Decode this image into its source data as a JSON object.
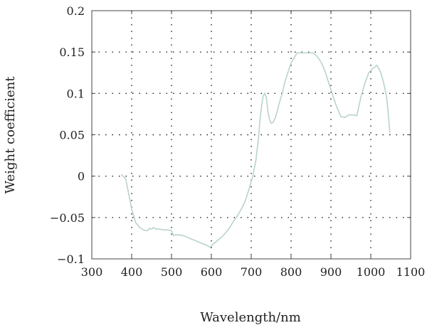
{
  "chart_data": {
    "type": "line",
    "xlabel": "Wavelength/nm",
    "ylabel": "Weight coefficient",
    "xlim": [
      300,
      1100
    ],
    "ylim": [
      -0.1,
      0.2
    ],
    "xticks": [
      300,
      400,
      500,
      600,
      700,
      800,
      900,
      1000,
      1100
    ],
    "xtick_labels": [
      "300",
      "400",
      "500",
      "600",
      "700",
      "800",
      "900",
      "1000",
      "1100"
    ],
    "yticks": [
      -0.1,
      -0.05,
      0,
      0.05,
      0.1,
      0.15,
      0.2
    ],
    "ytick_labels": [
      "−0.1",
      "−0.05",
      "0",
      "0.05",
      "0.1",
      "0.15",
      "0.2"
    ],
    "grid": true,
    "series_color": "#b9d3cd",
    "series": [
      {
        "x": [
          374,
          385,
          392,
          400,
          410,
          420,
          430,
          440,
          445,
          450,
          455,
          460,
          470,
          480,
          490,
          500,
          505,
          510,
          515,
          520,
          530,
          540,
          550,
          560,
          570,
          580,
          590,
          597,
          605,
          615,
          625,
          635,
          645,
          655,
          665,
          675,
          685,
          695,
          705,
          712,
          718,
          722,
          726,
          730,
          734,
          738,
          742,
          746,
          750,
          755,
          760,
          765,
          770,
          778,
          785,
          792,
          800,
          808,
          815,
          825,
          835,
          845,
          855,
          865,
          875,
          885,
          895,
          905,
          915,
          925,
          935,
          945,
          955,
          965,
          975,
          985,
          995,
          1005,
          1015,
          1020,
          1025,
          1030,
          1035,
          1040,
          1044,
          1048
        ],
        "y": [
          0.002,
          -0.003,
          -0.02,
          -0.04,
          -0.056,
          -0.062,
          -0.065,
          -0.066,
          -0.063,
          -0.064,
          -0.062,
          -0.064,
          -0.064,
          -0.065,
          -0.065,
          -0.066,
          -0.072,
          -0.071,
          -0.071,
          -0.071,
          -0.072,
          -0.074,
          -0.076,
          -0.078,
          -0.08,
          -0.082,
          -0.084,
          -0.086,
          -0.082,
          -0.078,
          -0.074,
          -0.069,
          -0.063,
          -0.055,
          -0.048,
          -0.04,
          -0.03,
          -0.015,
          0.002,
          0.02,
          0.045,
          0.068,
          0.085,
          0.097,
          0.1,
          0.095,
          0.078,
          0.068,
          0.064,
          0.065,
          0.07,
          0.078,
          0.088,
          0.1,
          0.115,
          0.125,
          0.137,
          0.143,
          0.149,
          0.149,
          0.149,
          0.149,
          0.149,
          0.145,
          0.138,
          0.127,
          0.112,
          0.097,
          0.083,
          0.072,
          0.071,
          0.074,
          0.074,
          0.073,
          0.095,
          0.112,
          0.125,
          0.13,
          0.134,
          0.13,
          0.125,
          0.117,
          0.107,
          0.095,
          0.075,
          0.052
        ]
      }
    ]
  }
}
